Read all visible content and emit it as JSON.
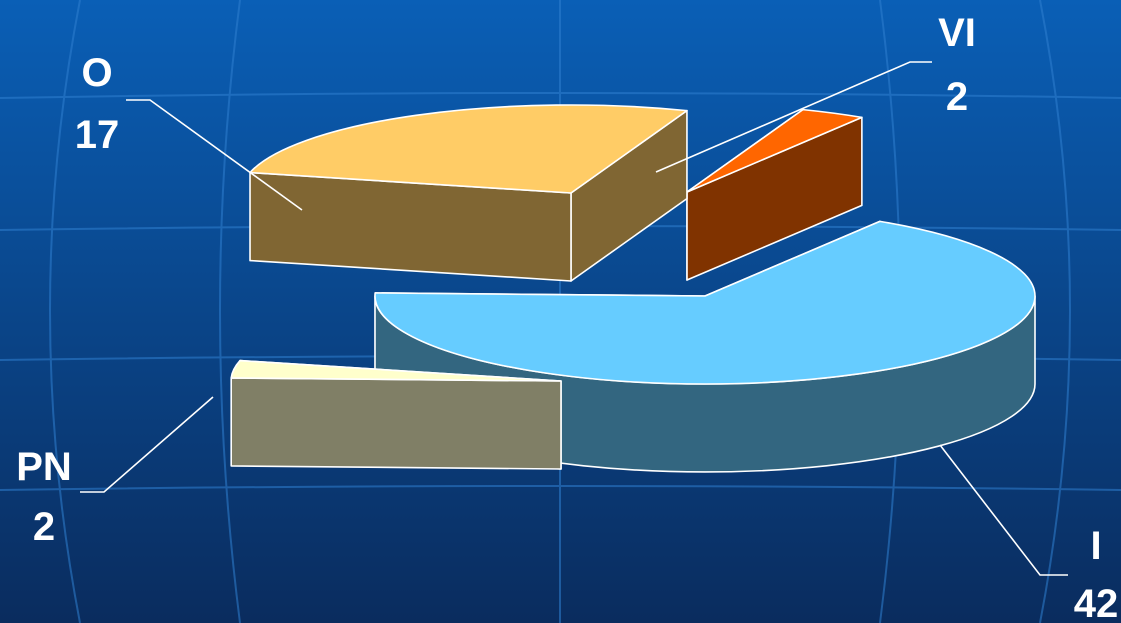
{
  "chart_data": {
    "type": "pie",
    "style": "3d-exploded",
    "title": "",
    "legend": "none",
    "slices": [
      {
        "label": "I",
        "value": 42,
        "color": "#66ccff",
        "side": "#336680"
      },
      {
        "label": "PN",
        "value": 2,
        "color": "#ffffcc",
        "side": "#807f66"
      },
      {
        "label": "O",
        "value": 17,
        "color": "#ffcc66",
        "side": "#806633"
      },
      {
        "label": "VI",
        "value": 2,
        "color": "#ff6600",
        "side": "#803300"
      }
    ]
  },
  "colors": {
    "background_top": "#0a5fb6",
    "background_bottom": "#0a2c5e",
    "grid": "#2f7fd0",
    "text": "#ffffff"
  }
}
